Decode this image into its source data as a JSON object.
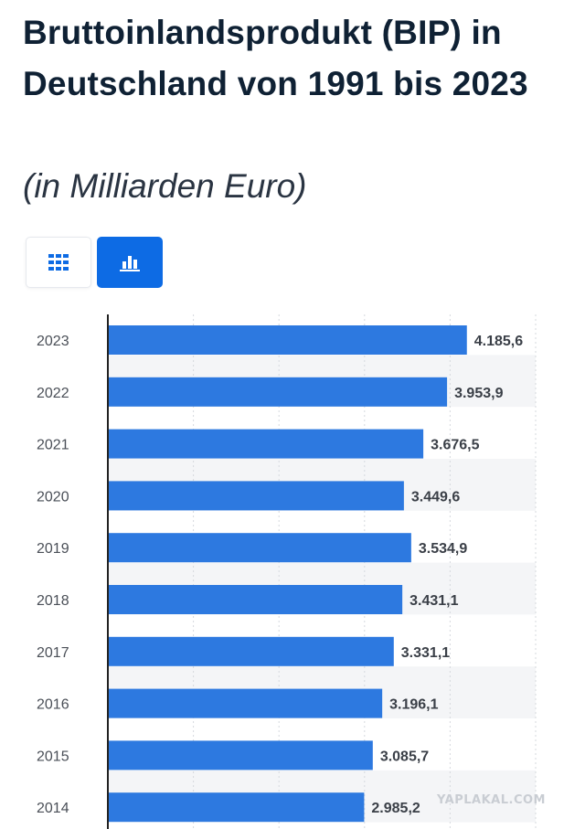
{
  "title": "Bruttoinlandsprodukt (BIP) in Deutschland von 1991 bis 2023",
  "subtitle": "(in Milliarden Euro)",
  "toggles": [
    {
      "icon": "table-grid-icon",
      "active": false
    },
    {
      "icon": "bar-chart-icon",
      "active": true
    }
  ],
  "colors": {
    "bar": "#2d79e0",
    "accent": "#0d6be4",
    "title": "#0f2134",
    "stripe": "#f4f5f7"
  },
  "watermark": "YAPLAKAL.COM",
  "chart_data": {
    "type": "bar",
    "orientation": "horizontal",
    "categories": [
      "2023",
      "2022",
      "2021",
      "2020",
      "2019",
      "2018",
      "2017",
      "2016",
      "2015",
      "2014"
    ],
    "values": [
      4185.6,
      3953.9,
      3676.5,
      3449.6,
      3534.9,
      3431.1,
      3331.1,
      3196.1,
      3085.7,
      2985.2
    ],
    "value_labels": [
      "4.185,6",
      "3.953,9",
      "3.676,5",
      "3.449,6",
      "3.534,9",
      "3.431,1",
      "3.331,1",
      "3.196,1",
      "3.085,7",
      "2.985,2"
    ],
    "xlim": [
      0,
      5000
    ],
    "grid": true,
    "title": "",
    "xlabel": "",
    "ylabel": ""
  }
}
